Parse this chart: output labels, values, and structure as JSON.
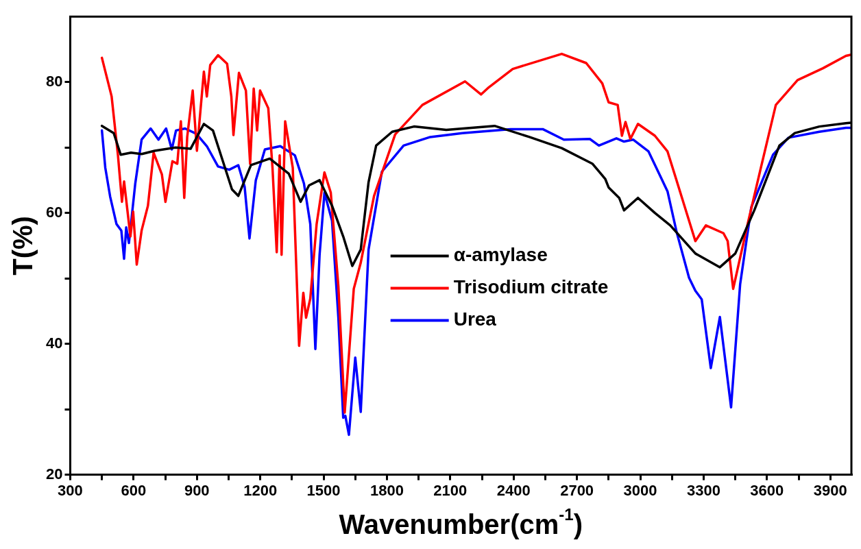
{
  "chart_data": {
    "type": "line",
    "xlabel": "Wavenumber(cm$^{-1}$)",
    "ylabel": "T(%)",
    "xlim": [
      300,
      4000
    ],
    "ylim": [
      20,
      90
    ],
    "xticks": [
      300,
      {
        "value": 450,
        "label": null
      },
      600,
      {
        "value": 750,
        "label": null
      },
      900,
      {
        "value": 1050,
        "label": null
      },
      1200,
      {
        "value": 1350,
        "label": null
      },
      1500,
      {
        "value": 1650,
        "label": null
      },
      1800,
      {
        "value": 1950,
        "label": null
      },
      2100,
      {
        "value": 2250,
        "label": null
      },
      2400,
      {
        "value": 2550,
        "label": null
      },
      2700,
      {
        "value": 2850,
        "label": null
      },
      3000,
      {
        "value": 3150,
        "label": null
      },
      3300,
      {
        "value": 3450,
        "label": null
      },
      3600,
      {
        "value": 3750,
        "label": null
      },
      3900
    ],
    "yticks": [
      20,
      {
        "value": 30,
        "label": null
      },
      40,
      {
        "value": 50,
        "label": null
      },
      60,
      {
        "value": 70,
        "label": null
      },
      80
    ],
    "legend": "center",
    "marker": "none",
    "line_style": "solid",
    "series": [
      {
        "name": "α-amylase",
        "color": "#000000",
        "x": [
          450,
          506,
          539,
          588,
          638,
          700,
          800,
          870,
          933,
          976,
          1023,
          1066,
          1096,
          1156,
          1245,
          1335,
          1391,
          1431,
          1481,
          1540,
          1593,
          1636,
          1676,
          1713,
          1749,
          1825,
          1928,
          2081,
          2310,
          2475,
          2628,
          2774,
          2834,
          2850,
          2900,
          2923,
          2989,
          3069,
          3142,
          3261,
          3377,
          3450,
          3540,
          3659,
          3732,
          3848,
          3974,
          4000
        ],
        "values": [
          73.3,
          72.2,
          68.9,
          69.2,
          69.0,
          69.5,
          70.0,
          69.8,
          73.6,
          72.6,
          67.9,
          63.6,
          62.6,
          67.3,
          68.3,
          66.0,
          61.7,
          64.2,
          65.0,
          61.1,
          56.4,
          51.9,
          54.4,
          64.7,
          70.3,
          72.4,
          73.2,
          72.7,
          73.3,
          71.6,
          69.9,
          67.5,
          65.2,
          63.9,
          62.3,
          60.4,
          62.3,
          60.0,
          58.1,
          53.8,
          51.7,
          53.8,
          60.4,
          70.3,
          72.2,
          73.2,
          73.7,
          73.8
        ]
      },
      {
        "name": "Trisodium citrate",
        "color": "#ff0000",
        "x": [
          450,
          496,
          526,
          545,
          555,
          585,
          598,
          615,
          638,
          668,
          695,
          734,
          751,
          784,
          807,
          824,
          840,
          854,
          880,
          900,
          933,
          947,
          963,
          1000,
          1043,
          1063,
          1073,
          1099,
          1132,
          1152,
          1169,
          1185,
          1199,
          1238,
          1258,
          1278,
          1292,
          1301,
          1318,
          1354,
          1384,
          1404,
          1417,
          1437,
          1467,
          1504,
          1534,
          1570,
          1600,
          1643,
          1676,
          1739,
          1839,
          1968,
          2170,
          2246,
          2283,
          2396,
          2628,
          2744,
          2820,
          2850,
          2893,
          2913,
          2930,
          2953,
          2989,
          3069,
          3129,
          3188,
          3261,
          3311,
          3394,
          3414,
          3440,
          3510,
          3569,
          3642,
          3745,
          3865,
          3974,
          4000
        ],
        "values": [
          83.7,
          77.8,
          68.8,
          61.7,
          64.8,
          56.4,
          60.2,
          52.1,
          57.3,
          61.1,
          69.2,
          65.9,
          61.7,
          67.9,
          67.5,
          74.0,
          62.3,
          71.6,
          78.7,
          69.5,
          81.6,
          77.8,
          82.6,
          84.1,
          82.8,
          77.8,
          71.9,
          81.4,
          78.7,
          67.5,
          79.0,
          72.6,
          78.7,
          76.0,
          66.9,
          54.0,
          68.8,
          53.6,
          74.0,
          66.9,
          39.7,
          47.8,
          44.0,
          46.9,
          58.3,
          66.2,
          63.1,
          48.8,
          29.5,
          48.4,
          52.4,
          62.6,
          72.0,
          76.5,
          80.1,
          78.1,
          79.2,
          82.0,
          84.3,
          82.9,
          79.8,
          76.9,
          76.5,
          71.8,
          73.9,
          71.3,
          73.6,
          71.8,
          69.4,
          63.3,
          55.7,
          58.1,
          56.9,
          55.7,
          48.4,
          58.5,
          66.6,
          76.5,
          80.3,
          82.1,
          84.0,
          84.2
        ]
      },
      {
        "name": "Urea",
        "color": "#0000ff",
        "x": [
          450,
          466,
          489,
          519,
          542,
          555,
          565,
          578,
          608,
          638,
          681,
          718,
          754,
          781,
          801,
          844,
          897,
          947,
          1000,
          1053,
          1096,
          1126,
          1149,
          1179,
          1222,
          1295,
          1364,
          1407,
          1437,
          1461,
          1481,
          1504,
          1540,
          1570,
          1593,
          1603,
          1620,
          1650,
          1676,
          1713,
          1776,
          1879,
          2005,
          2157,
          2386,
          2538,
          2638,
          2761,
          2804,
          2887,
          2923,
          2966,
          3039,
          3129,
          3172,
          3231,
          3261,
          3291,
          3334,
          3377,
          3430,
          3473,
          3526,
          3629,
          3702,
          3848,
          3974,
          4000
        ],
        "values": [
          72.6,
          66.9,
          62.5,
          58.3,
          57.3,
          53.0,
          57.8,
          55.4,
          64.5,
          71.2,
          72.9,
          71.2,
          72.9,
          69.7,
          72.6,
          72.9,
          72.1,
          70.2,
          67.1,
          66.6,
          67.3,
          64.0,
          56.1,
          65.0,
          69.7,
          70.2,
          68.8,
          64.5,
          58.3,
          39.2,
          53.6,
          63.1,
          58.8,
          44.0,
          28.7,
          29.0,
          26.1,
          37.9,
          29.6,
          54.4,
          66.3,
          70.3,
          71.6,
          72.2,
          72.8,
          72.8,
          71.2,
          71.3,
          70.3,
          71.4,
          70.9,
          71.2,
          69.4,
          63.3,
          57.1,
          50.1,
          48.1,
          46.8,
          36.3,
          44.1,
          30.3,
          49.1,
          60.9,
          68.9,
          71.5,
          72.4,
          73.0,
          73.0
        ]
      }
    ]
  }
}
